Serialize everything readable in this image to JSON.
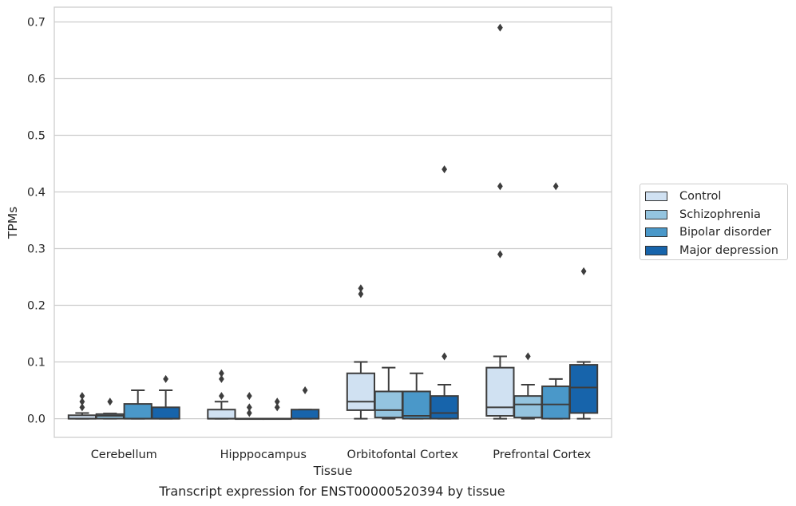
{
  "chart_data": {
    "type": "box",
    "title": "",
    "xlabel": "Tissue",
    "ylabel": "TPMs",
    "ylim": [
      -0.033,
      0.726
    ],
    "yticks": [
      "0.0",
      "0.1",
      "0.2",
      "0.3",
      "0.4",
      "0.5",
      "0.6",
      "0.7"
    ],
    "ytick_values": [
      0,
      0.1,
      0.2,
      0.3,
      0.4,
      0.5,
      0.6,
      0.7
    ],
    "grid": true,
    "legend_position": "right",
    "categories": [
      "Cerebellum",
      "Hipppocampus",
      "Orbitofontal Cortex",
      "Prefrontal Cortex"
    ],
    "series": [
      {
        "name": "Control",
        "color": "#d0e1f2",
        "boxes": [
          {
            "q1": 0,
            "median": 0,
            "q3": 0.006,
            "whisker_low": 0,
            "whisker_high": 0.01,
            "outliers": [
              0.02,
              0.03,
              0.04
            ]
          },
          {
            "q1": 0,
            "median": 0,
            "q3": 0.016,
            "whisker_low": 0,
            "whisker_high": 0.03,
            "outliers": [
              0.04,
              0.07,
              0.08
            ]
          },
          {
            "q1": 0.015,
            "median": 0.03,
            "q3": 0.08,
            "whisker_low": 0,
            "whisker_high": 0.1,
            "outliers": [
              0.22,
              0.23
            ]
          },
          {
            "q1": 0.005,
            "median": 0.02,
            "q3": 0.09,
            "whisker_low": 0,
            "whisker_high": 0.11,
            "outliers": [
              0.29,
              0.41,
              0.69
            ]
          }
        ]
      },
      {
        "name": "Schizophrenia",
        "color": "#94c4df",
        "boxes": [
          {
            "q1": 0,
            "median": 0.005,
            "q3": 0.008,
            "whisker_low": 0,
            "whisker_high": 0.009,
            "outliers": [
              0.03
            ]
          },
          {
            "q1": 0,
            "median": 0,
            "q3": 0,
            "whisker_low": 0,
            "whisker_high": 0,
            "outliers": [
              0.01,
              0.02,
              0.04
            ]
          },
          {
            "q1": 0.002,
            "median": 0.015,
            "q3": 0.048,
            "whisker_low": 0,
            "whisker_high": 0.09,
            "outliers": []
          },
          {
            "q1": 0.002,
            "median": 0.025,
            "q3": 0.04,
            "whisker_low": 0,
            "whisker_high": 0.06,
            "outliers": [
              0.11
            ]
          }
        ]
      },
      {
        "name": "Bipolar disorder",
        "color": "#4a98c9",
        "boxes": [
          {
            "q1": 0,
            "median": 0,
            "q3": 0.026,
            "whisker_low": 0,
            "whisker_high": 0.05,
            "outliers": []
          },
          {
            "q1": 0,
            "median": 0,
            "q3": 0,
            "whisker_low": 0,
            "whisker_high": 0,
            "outliers": [
              0.02,
              0.03
            ]
          },
          {
            "q1": 0,
            "median": 0.005,
            "q3": 0.048,
            "whisker_low": 0,
            "whisker_high": 0.08,
            "outliers": []
          },
          {
            "q1": 0,
            "median": 0.025,
            "q3": 0.057,
            "whisker_low": 0,
            "whisker_high": 0.07,
            "outliers": [
              0.41
            ]
          }
        ]
      },
      {
        "name": "Major depression",
        "color": "#1764ab",
        "boxes": [
          {
            "q1": 0,
            "median": 0,
            "q3": 0.02,
            "whisker_low": 0,
            "whisker_high": 0.05,
            "outliers": [
              0.07
            ]
          },
          {
            "q1": 0,
            "median": 0,
            "q3": 0.016,
            "whisker_low": 0,
            "whisker_high": 0.016,
            "outliers": [
              0.05
            ]
          },
          {
            "q1": 0,
            "median": 0.01,
            "q3": 0.04,
            "whisker_low": 0,
            "whisker_high": 0.06,
            "outliers": [
              0.11,
              0.44
            ]
          },
          {
            "q1": 0.01,
            "median": 0.055,
            "q3": 0.095,
            "whisker_low": 0,
            "whisker_high": 0.1,
            "outliers": [
              0.26
            ]
          }
        ]
      }
    ],
    "caption": "Transcript expression for ENST00000520394 by tissue"
  }
}
